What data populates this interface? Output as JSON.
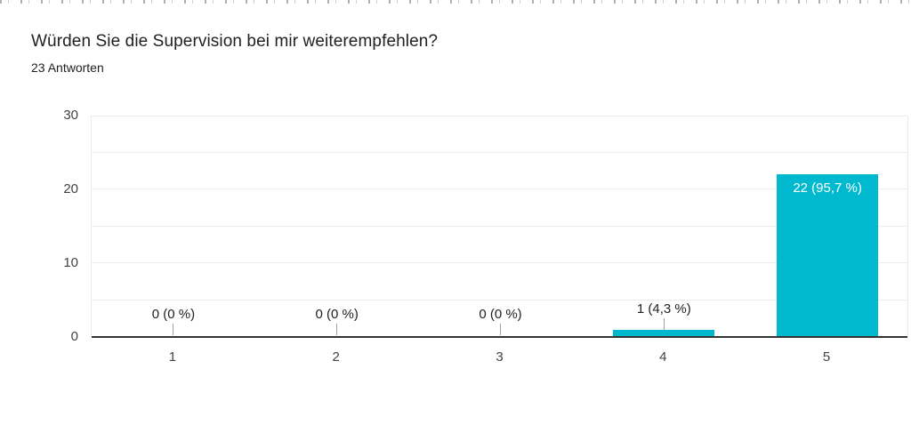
{
  "header": {
    "title": "Würden Sie die Supervision bei mir weiterempfehlen?",
    "subtitle": "23 Antworten"
  },
  "chart_data": {
    "type": "bar",
    "title": "Würden Sie die Supervision bei mir weiterempfehlen?",
    "subtitle": "23 Antworten",
    "categories": [
      "1",
      "2",
      "3",
      "4",
      "5"
    ],
    "values": [
      0,
      0,
      0,
      1,
      22
    ],
    "bar_labels": [
      "0 (0 %)",
      "0 (0 %)",
      "0 (0 %)",
      "1 (4,3 %)",
      "22 (95,7 %)"
    ],
    "xlabel": "",
    "ylabel": "",
    "ylim": [
      0,
      30
    ],
    "yticks": [
      0,
      10,
      20,
      30
    ],
    "grid_step": 5,
    "grid": true,
    "legend": false,
    "colors": {
      "bar": "#00b9ce",
      "gridline": "#ebebeb",
      "axis_line": "#333333",
      "callout": "#9e9e9e",
      "tick_text": "#424242",
      "label_text": "#212121",
      "inside_label_text": "#ffffff"
    }
  }
}
